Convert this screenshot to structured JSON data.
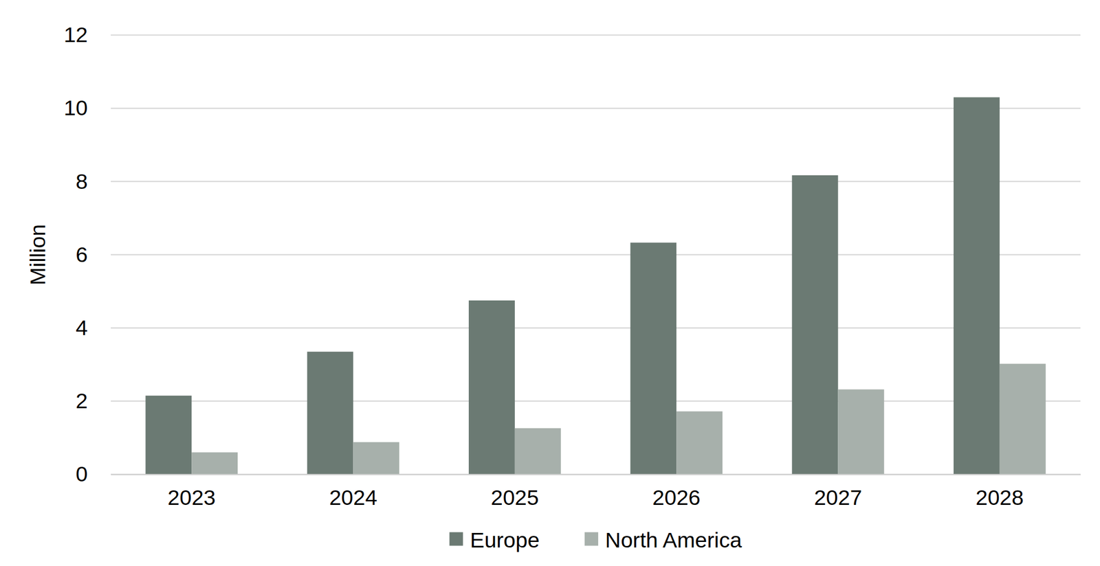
{
  "chart_data": {
    "type": "bar",
    "y_label": "Million",
    "categories": [
      "2023",
      "2024",
      "2025",
      "2026",
      "2027",
      "2028"
    ],
    "series": [
      {
        "name": "Europe",
        "color": "#6b7a73",
        "values": [
          2.15,
          3.35,
          4.75,
          6.33,
          8.17,
          10.3
        ]
      },
      {
        "name": "North America",
        "color": "#a7b0ab",
        "values": [
          0.6,
          0.88,
          1.26,
          1.72,
          2.32,
          3.02
        ]
      }
    ],
    "ylim": [
      0,
      12
    ],
    "yticks": [
      0,
      2,
      4,
      6,
      8,
      10,
      12
    ],
    "grid": true,
    "legend": "bottom"
  }
}
